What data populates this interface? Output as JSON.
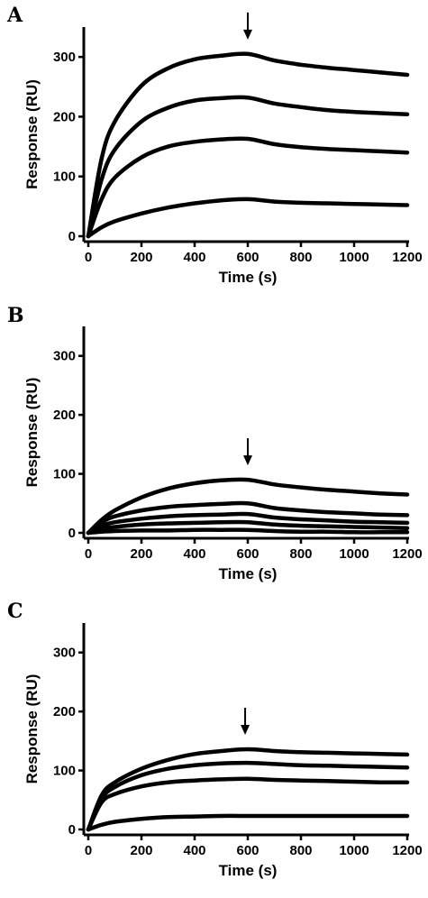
{
  "chart_data": [
    {
      "panel": "A",
      "type": "line",
      "xlabel": "Time (s)",
      "ylabel": "Response (RU)",
      "xlim": [
        0,
        1200
      ],
      "ylim": [
        0,
        350
      ],
      "xticks": [
        0,
        200,
        400,
        600,
        800,
        1000,
        1200
      ],
      "yticks": [
        0,
        100,
        200,
        300
      ],
      "annotation": {
        "type": "arrow",
        "x": 600
      },
      "series": [
        {
          "x": [
            0,
            50,
            100,
            200,
            300,
            400,
            500,
            600,
            700,
            800,
            900,
            1000,
            1100,
            1200
          ],
          "values": [
            0,
            130,
            192,
            252,
            281,
            296,
            302,
            305,
            294,
            287,
            282,
            278,
            274,
            270
          ]
        },
        {
          "x": [
            0,
            50,
            100,
            200,
            300,
            400,
            500,
            600,
            700,
            800,
            900,
            1000,
            1100,
            1200
          ],
          "values": [
            0,
            95,
            145,
            192,
            215,
            227,
            231,
            232,
            222,
            216,
            211,
            208,
            206,
            204
          ]
        },
        {
          "x": [
            0,
            50,
            100,
            200,
            300,
            400,
            500,
            600,
            700,
            800,
            900,
            1000,
            1100,
            1200
          ],
          "values": [
            0,
            62,
            98,
            132,
            150,
            158,
            162,
            163,
            154,
            149,
            146,
            144,
            142,
            140
          ]
        },
        {
          "x": [
            0,
            50,
            100,
            200,
            300,
            400,
            500,
            600,
            700,
            800,
            900,
            1000,
            1100,
            1200
          ],
          "values": [
            0,
            15,
            25,
            38,
            48,
            55,
            60,
            62,
            58,
            56,
            55,
            54,
            53,
            52
          ]
        }
      ]
    },
    {
      "panel": "B",
      "type": "line",
      "xlabel": "Time (s)",
      "ylabel": "Response (RU)",
      "xlim": [
        0,
        1200
      ],
      "ylim": [
        0,
        350
      ],
      "xticks": [
        0,
        200,
        400,
        600,
        800,
        1000,
        1200
      ],
      "yticks": [
        0,
        100,
        200,
        300
      ],
      "annotation": {
        "type": "arrow",
        "x": 600
      },
      "series": [
        {
          "x": [
            0,
            50,
            100,
            200,
            300,
            400,
            500,
            600,
            700,
            800,
            900,
            1000,
            1100,
            1200
          ],
          "values": [
            0,
            22,
            38,
            60,
            75,
            84,
            89,
            90,
            82,
            77,
            73,
            70,
            67,
            65
          ]
        },
        {
          "x": [
            0,
            50,
            100,
            200,
            300,
            400,
            500,
            600,
            700,
            800,
            900,
            1000,
            1100,
            1200
          ],
          "values": [
            0,
            18,
            28,
            38,
            44,
            47,
            49,
            50,
            42,
            38,
            35,
            33,
            31,
            30
          ]
        },
        {
          "x": [
            0,
            50,
            100,
            200,
            300,
            400,
            500,
            600,
            700,
            800,
            900,
            1000,
            1100,
            1200
          ],
          "values": [
            0,
            12,
            18,
            24,
            28,
            30,
            31,
            32,
            26,
            23,
            21,
            19,
            18,
            17
          ]
        },
        {
          "x": [
            0,
            50,
            100,
            200,
            300,
            400,
            500,
            600,
            700,
            800,
            900,
            1000,
            1100,
            1200
          ],
          "values": [
            0,
            7,
            10,
            14,
            16,
            17,
            18,
            18,
            14,
            12,
            11,
            10,
            9,
            8
          ]
        },
        {
          "x": [
            0,
            50,
            100,
            200,
            300,
            400,
            500,
            600,
            700,
            800,
            900,
            1000,
            1100,
            1200
          ],
          "values": [
            0,
            2,
            3,
            4,
            4,
            5,
            5,
            5,
            3,
            2,
            2,
            1,
            1,
            1
          ]
        }
      ]
    },
    {
      "panel": "C",
      "type": "line",
      "xlabel": "Time (s)",
      "ylabel": "Response (RU)",
      "xlim": [
        0,
        1200
      ],
      "ylim": [
        0,
        350
      ],
      "xticks": [
        0,
        200,
        400,
        600,
        800,
        1000,
        1200
      ],
      "yticks": [
        0,
        100,
        200,
        300
      ],
      "annotation": {
        "type": "arrow",
        "x": 590
      },
      "series": [
        {
          "x": [
            0,
            50,
            100,
            200,
            300,
            400,
            500,
            600,
            700,
            800,
            900,
            1000,
            1100,
            1200
          ],
          "values": [
            0,
            58,
            80,
            103,
            118,
            128,
            133,
            136,
            133,
            131,
            130,
            129,
            128,
            127
          ]
        },
        {
          "x": [
            0,
            50,
            100,
            200,
            300,
            400,
            500,
            600,
            700,
            800,
            900,
            1000,
            1100,
            1200
          ],
          "values": [
            0,
            52,
            72,
            92,
            103,
            109,
            112,
            113,
            111,
            109,
            108,
            107,
            106,
            105
          ]
        },
        {
          "x": [
            0,
            50,
            100,
            200,
            300,
            400,
            500,
            600,
            700,
            800,
            900,
            1000,
            1100,
            1200
          ],
          "values": [
            0,
            46,
            60,
            73,
            80,
            83,
            85,
            86,
            84,
            83,
            82,
            81,
            80,
            80
          ]
        },
        {
          "x": [
            0,
            50,
            100,
            200,
            300,
            400,
            500,
            600,
            700,
            800,
            900,
            1000,
            1100,
            1200
          ],
          "values": [
            0,
            8,
            13,
            18,
            21,
            22,
            23,
            23,
            23,
            23,
            23,
            23,
            23,
            23
          ]
        }
      ]
    }
  ]
}
